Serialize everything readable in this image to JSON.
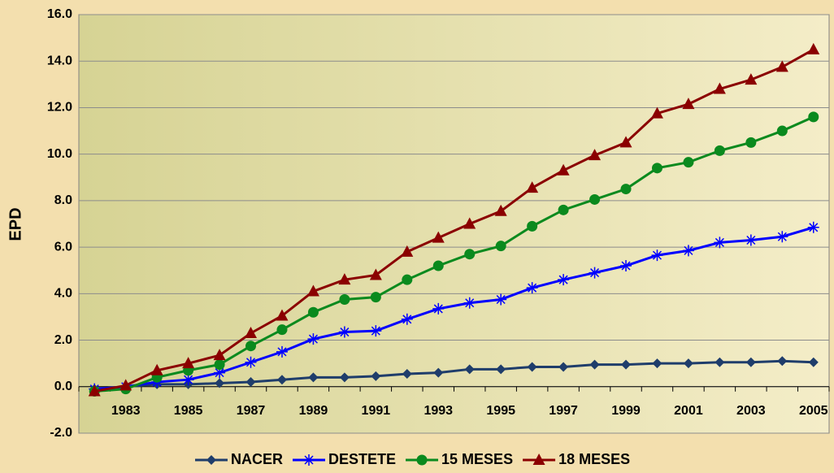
{
  "chart_data": {
    "type": "line",
    "y_label": "EPD",
    "categories": [
      null,
      "1983",
      null,
      "1985",
      null,
      "1987",
      null,
      "1989",
      null,
      "1991",
      null,
      "1993",
      null,
      "1995",
      null,
      "1997",
      null,
      "1999",
      null,
      "2001",
      null,
      "2003",
      null,
      "2005"
    ],
    "series": [
      {
        "name": "NACER",
        "color": "#1f3d6b",
        "marker": "diamond",
        "values": [
          -0.1,
          0.0,
          0.1,
          0.1,
          0.15,
          0.2,
          0.3,
          0.4,
          0.4,
          0.45,
          0.55,
          0.6,
          0.75,
          0.75,
          0.85,
          0.85,
          0.95,
          0.95,
          1.0,
          1.0,
          1.05,
          1.05,
          1.1,
          1.05
        ]
      },
      {
        "name": "DESTETE",
        "color": "#0000ff",
        "marker": "asterisk",
        "values": [
          -0.1,
          0.0,
          0.2,
          0.3,
          0.6,
          1.05,
          1.5,
          2.05,
          2.35,
          2.4,
          2.9,
          3.35,
          3.6,
          3.75,
          4.25,
          4.6,
          4.9,
          5.2,
          5.65,
          5.85,
          6.2,
          6.3,
          6.45,
          6.85
        ]
      },
      {
        "name": "15 MESES",
        "color": "#0a8a1e",
        "marker": "circle",
        "values": [
          -0.2,
          -0.1,
          0.4,
          0.7,
          0.95,
          1.75,
          2.45,
          3.2,
          3.75,
          3.85,
          4.6,
          5.2,
          5.7,
          6.05,
          6.9,
          7.6,
          8.05,
          8.5,
          9.4,
          9.65,
          10.15,
          10.5,
          11.0,
          11.6
        ]
      },
      {
        "name": "18 MESES",
        "color": "#8b0000",
        "marker": "triangle",
        "values": [
          -0.2,
          0.05,
          0.7,
          1.0,
          1.35,
          2.3,
          3.05,
          4.1,
          4.6,
          4.8,
          5.8,
          6.4,
          7.0,
          7.55,
          8.55,
          9.3,
          9.95,
          10.5,
          11.75,
          12.15,
          12.8,
          13.2,
          13.75,
          14.5
        ]
      }
    ],
    "ylim": [
      -2.0,
      16.0
    ],
    "yticks": [
      {
        "value": -2,
        "label": "-2.0"
      },
      {
        "value": 0,
        "label": "0.0"
      },
      {
        "value": 2,
        "label": "2.0"
      },
      {
        "value": 4,
        "label": "4.0"
      },
      {
        "value": 6,
        "label": "6.0"
      },
      {
        "value": 8,
        "label": "8.0"
      },
      {
        "value": 10,
        "label": "10.0"
      },
      {
        "value": 12,
        "label": "12.0"
      },
      {
        "value": 14,
        "label": "14.0"
      },
      {
        "value": 16,
        "label": "16.0"
      }
    ],
    "grid": true,
    "legend": "bottom"
  }
}
